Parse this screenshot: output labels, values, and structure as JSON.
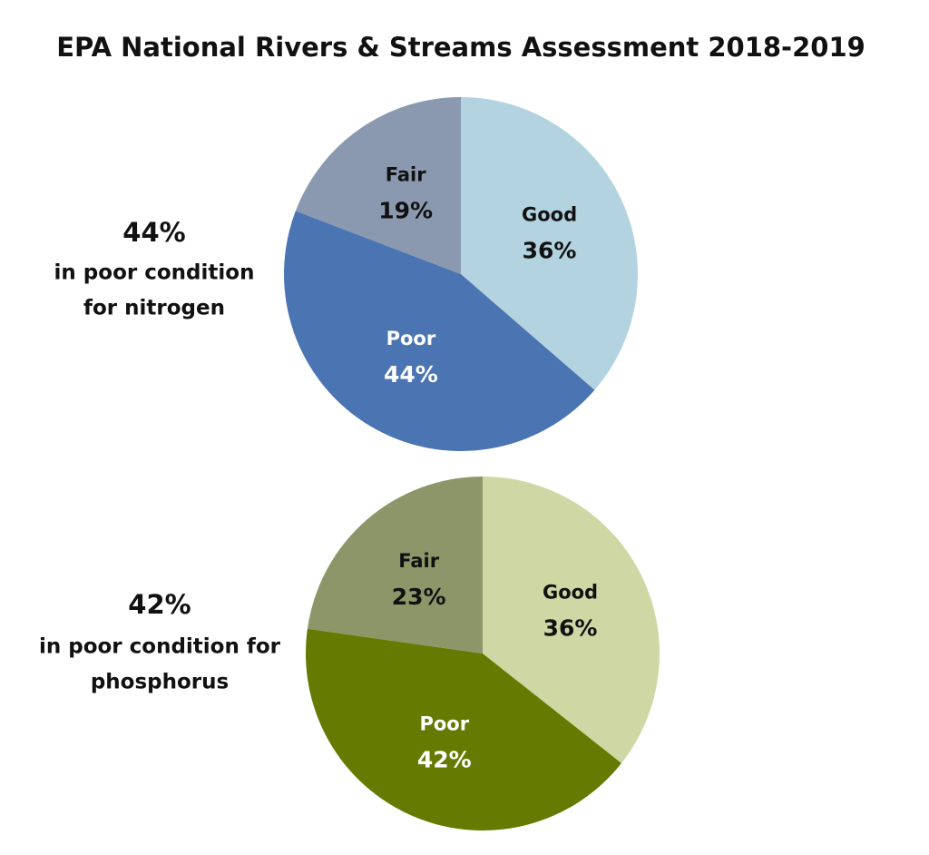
{
  "title": "EPA National Rivers & Streams Assessment 2018-2019",
  "chart_data": [
    {
      "type": "pie",
      "categories": [
        "Good",
        "Poor",
        "Fair"
      ],
      "values": [
        36,
        44,
        19
      ],
      "value_labels": [
        "36%",
        "44%",
        "19%"
      ],
      "colors": [
        "#b3d3e0",
        "#4b74b3",
        "#8a99b0"
      ],
      "label_colors": [
        "#111111",
        "#ffffff",
        "#111111"
      ],
      "annotations": [
        "44%",
        "in poor condition",
        "for nitrogen"
      ]
    },
    {
      "type": "pie",
      "categories": [
        "Good",
        "Poor",
        "Fair"
      ],
      "values": [
        36,
        42,
        23
      ],
      "value_labels": [
        "36%",
        "42%",
        "23%"
      ],
      "colors": [
        "#cfd8a4",
        "#657a00",
        "#8c9668"
      ],
      "label_colors": [
        "#111111",
        "#ffffff",
        "#111111"
      ],
      "annotations": [
        "42%",
        "in poor condition for",
        "phosphorus"
      ]
    }
  ]
}
